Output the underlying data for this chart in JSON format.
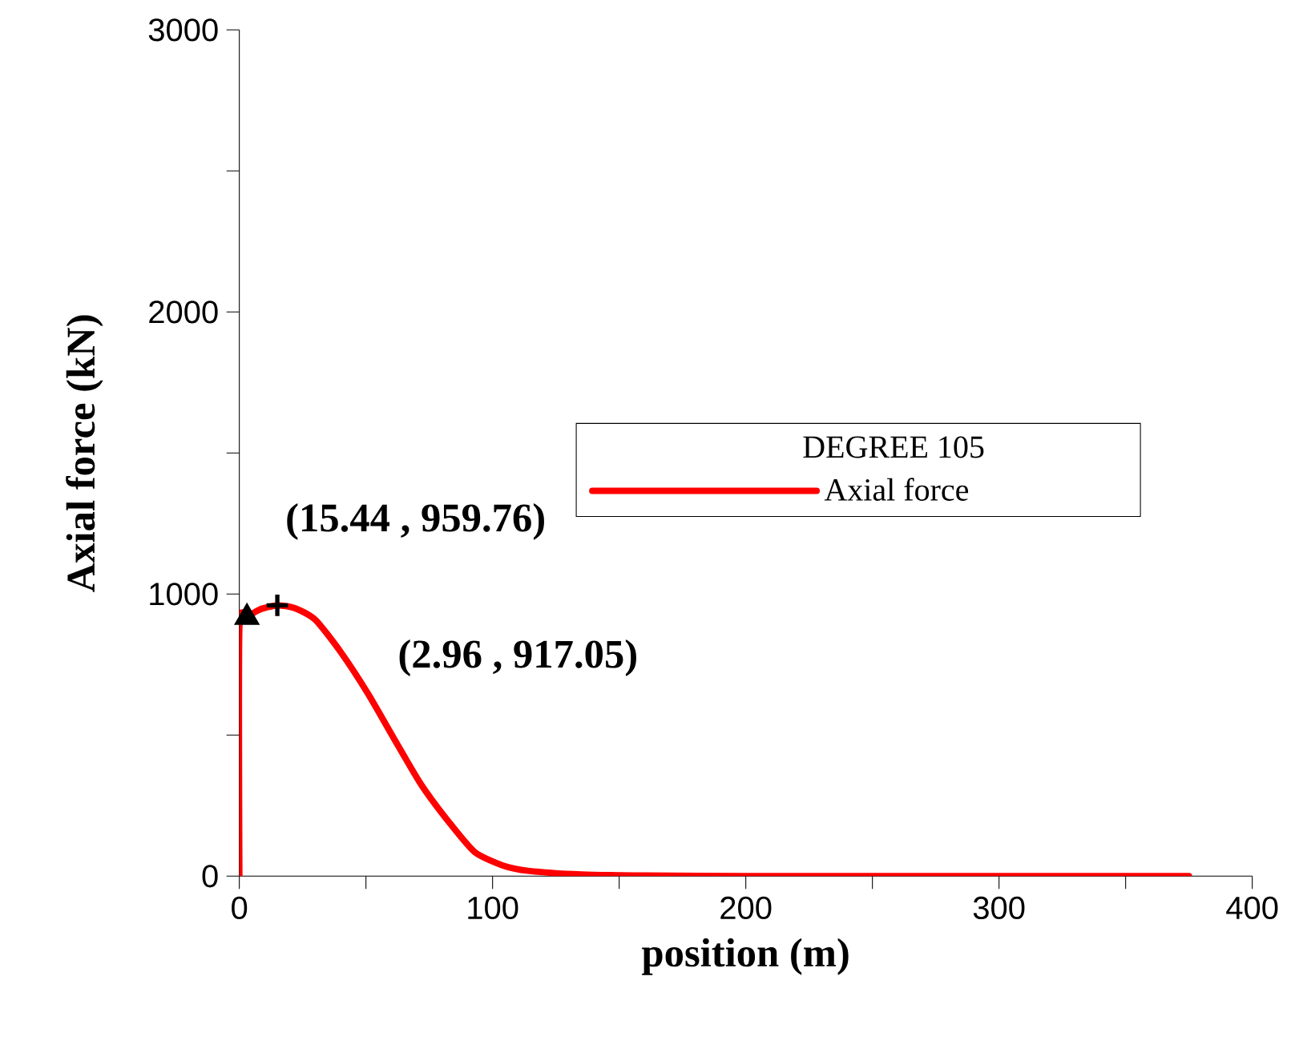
{
  "chart_data": {
    "type": "line",
    "xlabel": "position (m)",
    "ylabel": "Axial force (kN)",
    "legend_title": "DEGREE 105",
    "legend": "right",
    "grid": false,
    "xlim": [
      0,
      400
    ],
    "ylim": [
      0,
      3000
    ],
    "xticks": [
      0,
      {
        "value": 50,
        "label": null
      },
      100,
      {
        "value": 150,
        "label": null
      },
      200,
      {
        "value": 250,
        "label": null
      },
      300,
      {
        "value": 350,
        "label": null
      },
      400
    ],
    "yticks": [
      0,
      {
        "value": 500,
        "label": null
      },
      1000,
      {
        "value": 1500,
        "label": null
      },
      2000,
      {
        "value": 2500,
        "label": null
      },
      3000
    ],
    "series": [
      {
        "name": "Axial force",
        "color": "#ff0000",
        "marker": "none",
        "x": [
          0,
          0,
          3,
          8,
          15,
          22,
          30,
          40,
          51,
          62,
          72,
          83,
          93,
          104,
          114,
          135,
          160,
          200,
          250,
          300,
          375
        ],
        "values": [
          0,
          880,
          917,
          945,
          960,
          950,
          909,
          795,
          644,
          473,
          322,
          189,
          85,
          38,
          19,
          6,
          2,
          0,
          0,
          0,
          0
        ]
      },
      {
        "type": "scatter",
        "color": "#000000",
        "marker": "triangle",
        "x": [
          3
        ],
        "values": [
          917
        ]
      },
      {
        "type": "scatter",
        "color": "#000000",
        "marker": "cross",
        "x": [
          15
        ],
        "values": [
          960
        ]
      }
    ],
    "annotations": [
      "(15.44 , 959.76)",
      "(2.96 , 917.05)"
    ]
  }
}
